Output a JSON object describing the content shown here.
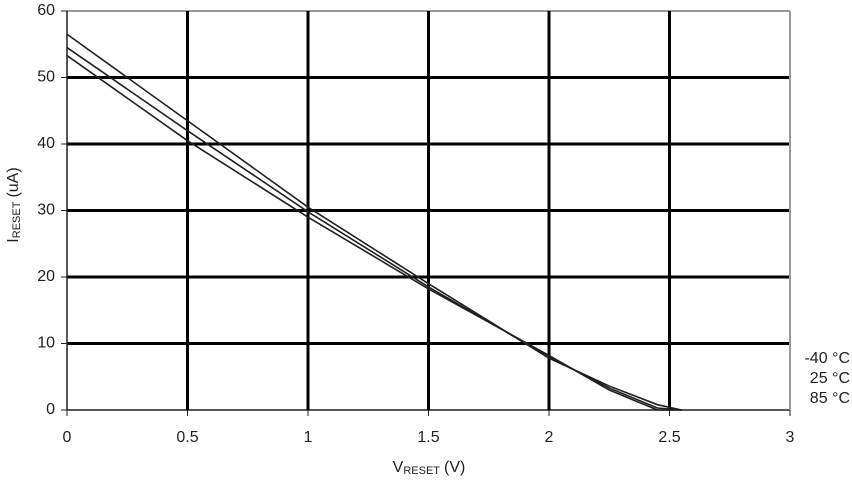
{
  "chart_data": {
    "type": "line",
    "ylabel": {
      "main": "I",
      "sub": "RESET",
      "unit": "(uA)"
    },
    "xlabel": {
      "main": "V",
      "sub": "RESET",
      "unit": "(V)"
    },
    "x": [
      0,
      0.5,
      1,
      1.5,
      2,
      2.25,
      2.45,
      2.55
    ],
    "series": [
      {
        "name": "-40 °C",
        "color": "#231f20",
        "values": [
          56.5,
          43.5,
          30.5,
          19,
          7.8,
          3.6,
          0.8,
          0
        ]
      },
      {
        "name": "25 °C",
        "color": "#231f20",
        "values": [
          54.5,
          42,
          29.8,
          18.5,
          8,
          3.3,
          0.3,
          0
        ]
      },
      {
        "name": "85 °C",
        "color": "#231f20",
        "values": [
          53.3,
          40.5,
          29,
          18.2,
          8.2,
          3,
          0,
          0
        ]
      }
    ],
    "xlim": [
      0,
      3
    ],
    "xticks": [
      0,
      0.5,
      1,
      1.5,
      2,
      2.5,
      3
    ],
    "ylim": [
      0,
      60
    ],
    "yticks": [
      0,
      10,
      20,
      30,
      40,
      50,
      60
    ],
    "grid": true,
    "legend": "bottom-right"
  }
}
